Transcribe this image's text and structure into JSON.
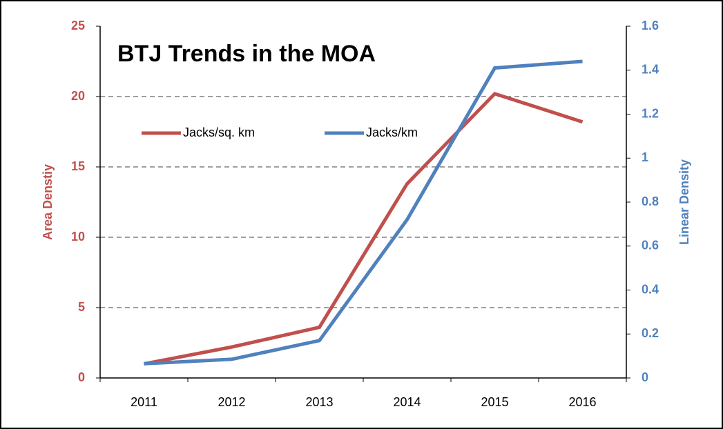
{
  "chart_data": {
    "type": "line",
    "title": "BTJ Trends in the MOA",
    "categories": [
      "2011",
      "2012",
      "2013",
      "2014",
      "2015",
      "2016"
    ],
    "series": [
      {
        "name": "Jacks/sq. km",
        "color": "#c0504d",
        "values": [
          1.0,
          2.2,
          3.6,
          13.8,
          20.2,
          18.2
        ]
      },
      {
        "name": "Jacks/km",
        "color": "#4f81bd",
        "axis": "y2",
        "values": [
          0.065,
          0.085,
          0.17,
          0.72,
          1.41,
          1.44
        ]
      }
    ],
    "ylabel": "Area Denstiy",
    "y2label": "Linear Density",
    "ylim": [
      0,
      25
    ],
    "yticks": [
      0,
      5,
      10,
      15,
      20,
      25
    ],
    "y2lim": [
      0,
      1.6
    ],
    "y2ticks": [
      0,
      0.2,
      0.4,
      0.6,
      0.8,
      1,
      1.2,
      1.4,
      1.6
    ],
    "grid": true,
    "legend": "upper left"
  }
}
